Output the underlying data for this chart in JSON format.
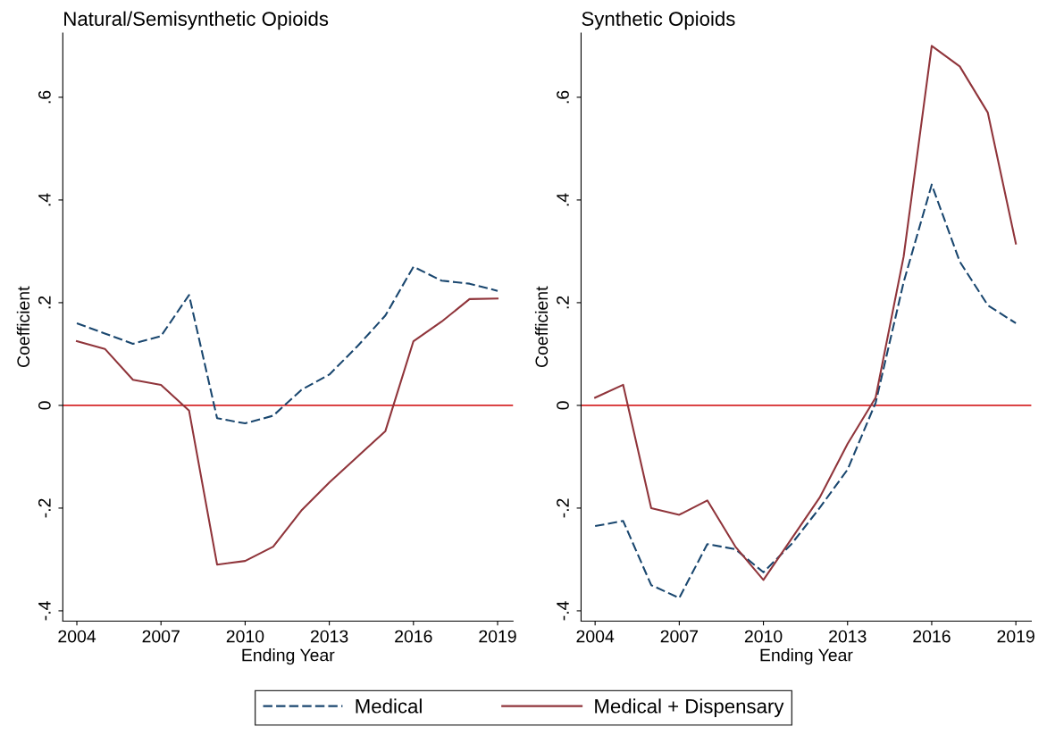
{
  "chart_data": [
    {
      "type": "line",
      "title": "Natural/Semisynthetic Opioids",
      "xlabel": "Ending Year",
      "ylabel": "Coefficient",
      "x": [
        2004,
        2005,
        2006,
        2007,
        2008,
        2009,
        2010,
        2011,
        2012,
        2013,
        2014,
        2015,
        2016,
        2017,
        2018,
        2019
      ],
      "xlim": [
        2003.5,
        2019.55
      ],
      "xticks": [
        2004,
        2007,
        2010,
        2013,
        2016,
        2019
      ],
      "ylim": [
        -0.42,
        0.725
      ],
      "yticks": [
        {
          "value": -0.4,
          "label": "-.4"
        },
        {
          "value": -0.2,
          "label": "-.2"
        },
        {
          "value": 0,
          "label": "0"
        },
        {
          "value": 0.2,
          "label": ".2"
        },
        {
          "value": 0.4,
          "label": ".4"
        },
        {
          "value": 0.6,
          "label": ".6"
        }
      ],
      "grid": false,
      "legend": "bottom",
      "ref_lines": [
        {
          "axis": "y",
          "value": 0,
          "color": "#d62728"
        }
      ],
      "series": [
        {
          "name": "Medical",
          "color": "#1a476f",
          "line_style": "dashed",
          "values": [
            0.16,
            0.14,
            0.12,
            0.135,
            0.215,
            -0.025,
            -0.035,
            -0.02,
            0.03,
            0.06,
            0.115,
            0.175,
            0.27,
            0.243,
            0.237,
            0.223
          ]
        },
        {
          "name": "Medical + Dispensary",
          "color": "#90353b",
          "line_style": "solid",
          "values": [
            0.125,
            0.11,
            0.05,
            0.04,
            -0.01,
            -0.31,
            -0.303,
            -0.275,
            -0.205,
            -0.15,
            -0.1,
            -0.05,
            0.125,
            0.163,
            0.207,
            0.208
          ]
        }
      ]
    },
    {
      "type": "line",
      "title": "Synthetic Opioids",
      "xlabel": "Ending Year",
      "ylabel": "Coefficient",
      "x": [
        2004,
        2005,
        2006,
        2007,
        2008,
        2009,
        2010,
        2011,
        2012,
        2013,
        2014,
        2015,
        2016,
        2017,
        2018,
        2019
      ],
      "xlim": [
        2003.5,
        2019.55
      ],
      "xticks": [
        2004,
        2007,
        2010,
        2013,
        2016,
        2019
      ],
      "ylim": [
        -0.42,
        0.725
      ],
      "yticks": [
        {
          "value": -0.4,
          "label": "-.4"
        },
        {
          "value": -0.2,
          "label": "-.2"
        },
        {
          "value": 0,
          "label": "0"
        },
        {
          "value": 0.2,
          "label": ".2"
        },
        {
          "value": 0.4,
          "label": ".4"
        },
        {
          "value": 0.6,
          "label": ".6"
        }
      ],
      "grid": false,
      "ref_lines": [
        {
          "axis": "y",
          "value": 0,
          "color": "#d62728"
        }
      ],
      "series": [
        {
          "color": "#1a476f",
          "line_style": "dashed",
          "values": [
            -0.235,
            -0.225,
            -0.35,
            -0.375,
            -0.27,
            -0.28,
            -0.325,
            -0.27,
            -0.2,
            -0.125,
            0.005,
            0.24,
            0.43,
            0.28,
            0.195,
            0.16
          ]
        },
        {
          "color": "#90353b",
          "line_style": "solid",
          "values": [
            0.015,
            0.04,
            -0.2,
            -0.213,
            -0.185,
            -0.275,
            -0.34,
            -0.26,
            -0.18,
            -0.075,
            0.015,
            0.29,
            0.7,
            0.66,
            0.57,
            0.315
          ]
        }
      ]
    }
  ]
}
